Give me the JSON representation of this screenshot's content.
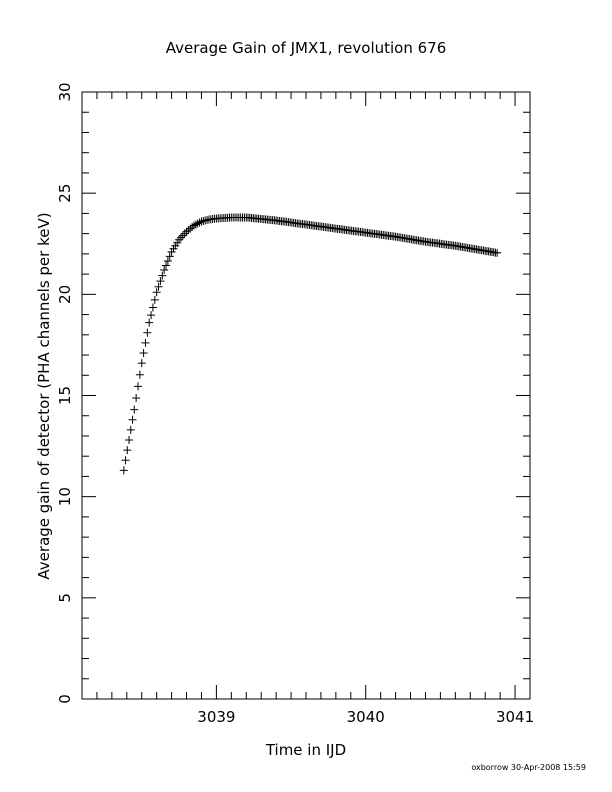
{
  "chart_data": {
    "type": "scatter",
    "title": "Average Gain of JMX1, revolution 676",
    "xlabel": "Time in IJD",
    "ylabel": "Average gain of detector (PHA channels per keV)",
    "xlim": [
      3038.1,
      3041.1
    ],
    "ylim": [
      0,
      30
    ],
    "x_ticks": [
      "3039",
      "3040",
      "3041"
    ],
    "y_ticks": [
      "0",
      "5",
      "10",
      "15",
      "20",
      "25",
      "30"
    ],
    "marker": "+",
    "color": "#000000",
    "grid": false,
    "series": [
      {
        "x": [
          3038.38,
          3038.45,
          3038.5,
          3038.55,
          3038.6,
          3038.65,
          3038.7,
          3038.75,
          3038.8,
          3038.85,
          3038.9,
          3038.95,
          3039.0,
          3039.1,
          3039.2,
          3039.4,
          3039.6,
          3039.8,
          3040.0,
          3040.2,
          3040.4,
          3040.6,
          3040.8,
          3040.88
        ],
        "y": [
          11.3,
          14.3,
          16.6,
          18.6,
          20.1,
          21.2,
          22.1,
          22.7,
          23.1,
          23.4,
          23.6,
          23.7,
          23.75,
          23.8,
          23.8,
          23.65,
          23.45,
          23.25,
          23.05,
          22.85,
          22.6,
          22.4,
          22.15,
          22.05
        ]
      }
    ]
  },
  "footer": {
    "stamp": "oxborrow 30-Apr-2008 15:59"
  }
}
